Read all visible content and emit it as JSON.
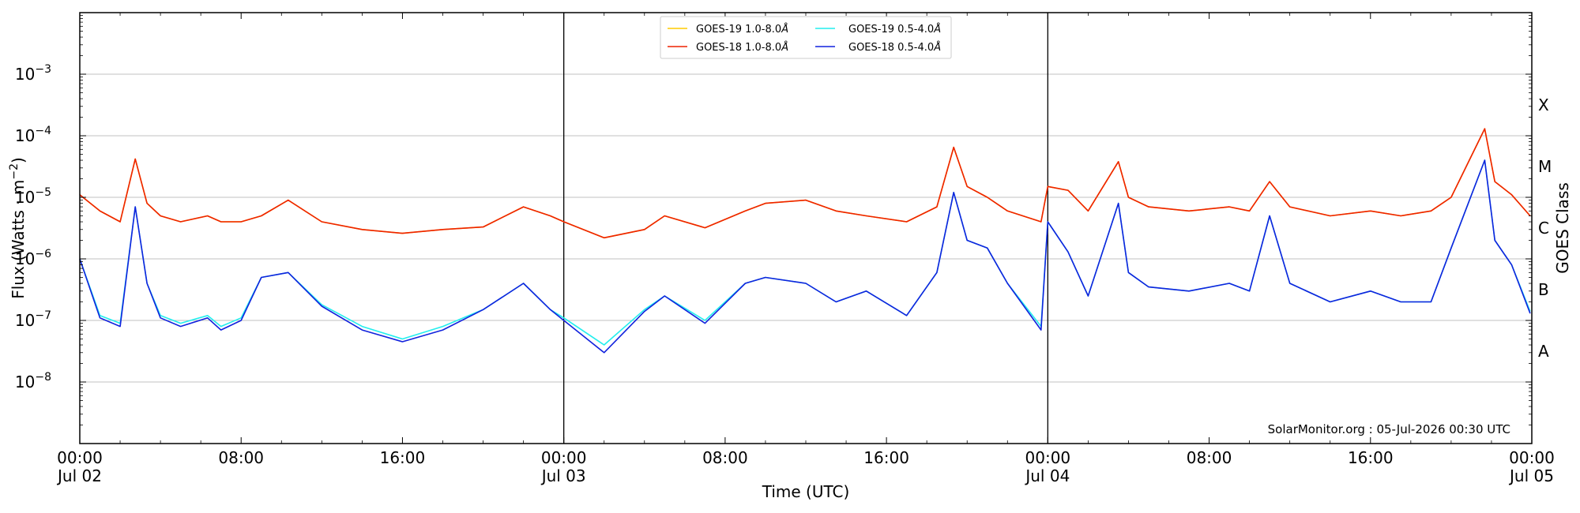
{
  "chart_data": {
    "type": "line",
    "yscale": "log",
    "ylim": [
      1e-09,
      0.01
    ],
    "xlim": [
      "2026-07-02T00:00",
      "2026-07-05T00:00"
    ],
    "xlabel": "Time (UTC)",
    "ylabel": "Flux (Watts · m^-2)",
    "ylabel_parts": {
      "prefix": "Flux (Watts · m",
      "sup": "−2",
      "suffix": ")"
    },
    "right_label": "GOES Class",
    "grid": "horizontal",
    "legend_placement": "top-center",
    "credit": "SolarMonitor.org : 05-Jul-2026 00:30 UTC",
    "y_ticks": [
      {
        "value": 1e-08,
        "base": "10",
        "exp": "−8"
      },
      {
        "value": 1e-07,
        "base": "10",
        "exp": "−7"
      },
      {
        "value": 1e-06,
        "base": "10",
        "exp": "−6"
      },
      {
        "value": 1e-05,
        "base": "10",
        "exp": "−5"
      },
      {
        "value": 0.0001,
        "base": "10",
        "exp": "−4"
      },
      {
        "value": 0.001,
        "base": "10",
        "exp": "−3"
      }
    ],
    "x_ticks": [
      {
        "value": "2026-07-02T00:00",
        "line1": "00:00",
        "line2": "Jul 02"
      },
      {
        "value": "2026-07-02T08:00",
        "line1": "08:00",
        "line2": ""
      },
      {
        "value": "2026-07-02T16:00",
        "line1": "16:00",
        "line2": ""
      },
      {
        "value": "2026-07-03T00:00",
        "line1": "00:00",
        "line2": "Jul 03"
      },
      {
        "value": "2026-07-03T08:00",
        "line1": "08:00",
        "line2": ""
      },
      {
        "value": "2026-07-03T16:00",
        "line1": "16:00",
        "line2": ""
      },
      {
        "value": "2026-07-04T00:00",
        "line1": "00:00",
        "line2": "Jul 04"
      },
      {
        "value": "2026-07-04T08:00",
        "line1": "08:00",
        "line2": ""
      },
      {
        "value": "2026-07-04T16:00",
        "line1": "16:00",
        "line2": ""
      },
      {
        "value": "2026-07-05T00:00",
        "line1": "00:00",
        "line2": "Jul 05"
      }
    ],
    "day_separators": [
      "2026-07-03T00:00",
      "2026-07-04T00:00"
    ],
    "goes_classes": [
      {
        "label": "A",
        "low": 1e-08,
        "high": 1e-07
      },
      {
        "label": "B",
        "low": 1e-07,
        "high": 1e-06
      },
      {
        "label": "C",
        "low": 1e-06,
        "high": 1e-05
      },
      {
        "label": "M",
        "low": 1e-05,
        "high": 0.0001
      },
      {
        "label": "X",
        "low": 0.0001,
        "high": 0.001
      }
    ],
    "series": [
      {
        "name": "GOES-19 1.0-8.0Å",
        "legend_label": "GOES-19 1.0-8.0",
        "color": "#ffcc00",
        "x": [
          "2026-07-02T00:00",
          "2026-07-02T01:00",
          "2026-07-02T02:00",
          "2026-07-02T02:45",
          "2026-07-02T03:20",
          "2026-07-02T04:00",
          "2026-07-02T05:00",
          "2026-07-02T06:20",
          "2026-07-02T07:00",
          "2026-07-02T08:00",
          "2026-07-02T09:00",
          "2026-07-02T10:20",
          "2026-07-02T12:00",
          "2026-07-02T14:00",
          "2026-07-02T16:00",
          "2026-07-02T18:00",
          "2026-07-02T20:00",
          "2026-07-02T22:00",
          "2026-07-02T23:20",
          "2026-07-03T00:00",
          "2026-07-03T02:00",
          "2026-07-03T04:00",
          "2026-07-03T05:00",
          "2026-07-03T07:00",
          "2026-07-03T09:00",
          "2026-07-03T10:00",
          "2026-07-03T12:00",
          "2026-07-03T13:30",
          "2026-07-03T15:00",
          "2026-07-03T17:00",
          "2026-07-03T18:30",
          "2026-07-03T19:20",
          "2026-07-03T20:00",
          "2026-07-03T21:00",
          "2026-07-03T22:00",
          "2026-07-03T23:40",
          "2026-07-04T00:00",
          "2026-07-04T01:00",
          "2026-07-04T02:00",
          "2026-07-04T03:30",
          "2026-07-04T04:00",
          "2026-07-04T05:00",
          "2026-07-04T07:00",
          "2026-07-04T09:00",
          "2026-07-04T10:00",
          "2026-07-04T11:00",
          "2026-07-04T12:00",
          "2026-07-04T14:00",
          "2026-07-04T16:00",
          "2026-07-04T17:30",
          "2026-07-04T19:00",
          "2026-07-04T20:00",
          "2026-07-04T21:40",
          "2026-07-04T22:10",
          "2026-07-04T23:00",
          "2026-07-04T23:55"
        ],
        "y": [
          1.1e-05,
          6e-06,
          4e-06,
          4.2e-05,
          8e-06,
          5e-06,
          4e-06,
          5e-06,
          4e-06,
          4e-06,
          5e-06,
          9e-06,
          4e-06,
          3e-06,
          2.6e-06,
          3e-06,
          3.3e-06,
          7e-06,
          5e-06,
          4e-06,
          2.2e-06,
          3e-06,
          5e-06,
          3.2e-06,
          6e-06,
          8e-06,
          9e-06,
          6e-06,
          5e-06,
          4e-06,
          7e-06,
          6.5e-05,
          1.5e-05,
          1e-05,
          6e-06,
          4e-06,
          1.5e-05,
          1.3e-05,
          6e-06,
          3.8e-05,
          1e-05,
          7e-06,
          6e-06,
          7e-06,
          6e-06,
          1.8e-05,
          7e-06,
          5e-06,
          6e-06,
          5e-06,
          6e-06,
          1e-05,
          0.00013,
          1.8e-05,
          1.1e-05,
          5e-06
        ]
      },
      {
        "name": "GOES-18 1.0-8.0Å",
        "legend_label": "GOES-18 1.0-8.0",
        "color": "#ee2200",
        "x": [
          "2026-07-02T00:00",
          "2026-07-02T01:00",
          "2026-07-02T02:00",
          "2026-07-02T02:45",
          "2026-07-02T03:20",
          "2026-07-02T04:00",
          "2026-07-02T05:00",
          "2026-07-02T06:20",
          "2026-07-02T07:00",
          "2026-07-02T08:00",
          "2026-07-02T09:00",
          "2026-07-02T10:20",
          "2026-07-02T12:00",
          "2026-07-02T14:00",
          "2026-07-02T16:00",
          "2026-07-02T18:00",
          "2026-07-02T20:00",
          "2026-07-02T22:00",
          "2026-07-02T23:20",
          "2026-07-03T00:00",
          "2026-07-03T02:00",
          "2026-07-03T04:00",
          "2026-07-03T05:00",
          "2026-07-03T07:00",
          "2026-07-03T09:00",
          "2026-07-03T10:00",
          "2026-07-03T12:00",
          "2026-07-03T13:30",
          "2026-07-03T15:00",
          "2026-07-03T17:00",
          "2026-07-03T18:30",
          "2026-07-03T19:20",
          "2026-07-03T20:00",
          "2026-07-03T21:00",
          "2026-07-03T22:00",
          "2026-07-03T23:40",
          "2026-07-04T00:00",
          "2026-07-04T01:00",
          "2026-07-04T02:00",
          "2026-07-04T03:30",
          "2026-07-04T04:00",
          "2026-07-04T05:00",
          "2026-07-04T07:00",
          "2026-07-04T09:00",
          "2026-07-04T10:00",
          "2026-07-04T11:00",
          "2026-07-04T12:00",
          "2026-07-04T14:00",
          "2026-07-04T16:00",
          "2026-07-04T17:30",
          "2026-07-04T19:00",
          "2026-07-04T20:00",
          "2026-07-04T21:40",
          "2026-07-04T22:10",
          "2026-07-04T23:00",
          "2026-07-04T23:55"
        ],
        "y": [
          1.1e-05,
          6e-06,
          4e-06,
          4.2e-05,
          8e-06,
          5e-06,
          4e-06,
          5e-06,
          4e-06,
          4e-06,
          5e-06,
          9e-06,
          4e-06,
          3e-06,
          2.6e-06,
          3e-06,
          3.3e-06,
          7e-06,
          5e-06,
          4e-06,
          2.2e-06,
          3e-06,
          5e-06,
          3.2e-06,
          6e-06,
          8e-06,
          9e-06,
          6e-06,
          5e-06,
          4e-06,
          7e-06,
          6.5e-05,
          1.5e-05,
          1e-05,
          6e-06,
          4e-06,
          1.5e-05,
          1.3e-05,
          6e-06,
          3.8e-05,
          1e-05,
          7e-06,
          6e-06,
          7e-06,
          6e-06,
          1.8e-05,
          7e-06,
          5e-06,
          6e-06,
          5e-06,
          6e-06,
          1e-05,
          0.00013,
          1.8e-05,
          1.1e-05,
          5e-06
        ]
      },
      {
        "name": "GOES-19 0.5-4.0Å",
        "legend_label": "GOES-19 0.5-4.0",
        "color": "#22eeee",
        "x": [
          "2026-07-02T00:00",
          "2026-07-02T01:00",
          "2026-07-02T02:00",
          "2026-07-02T02:45",
          "2026-07-02T03:20",
          "2026-07-02T04:00",
          "2026-07-02T05:00",
          "2026-07-02T06:20",
          "2026-07-02T07:00",
          "2026-07-02T08:00",
          "2026-07-02T09:00",
          "2026-07-02T10:20",
          "2026-07-02T12:00",
          "2026-07-02T14:00",
          "2026-07-02T16:00",
          "2026-07-02T18:00",
          "2026-07-02T20:00",
          "2026-07-02T22:00",
          "2026-07-02T23:20",
          "2026-07-03T00:00",
          "2026-07-03T02:00",
          "2026-07-03T04:00",
          "2026-07-03T05:00",
          "2026-07-03T07:00",
          "2026-07-03T09:00",
          "2026-07-03T10:00",
          "2026-07-03T12:00",
          "2026-07-03T13:30",
          "2026-07-03T15:00",
          "2026-07-03T17:00",
          "2026-07-03T18:30",
          "2026-07-03T19:20",
          "2026-07-03T20:00",
          "2026-07-03T21:00",
          "2026-07-03T22:00",
          "2026-07-03T23:40",
          "2026-07-04T00:00",
          "2026-07-04T01:00",
          "2026-07-04T02:00",
          "2026-07-04T03:30",
          "2026-07-04T04:00",
          "2026-07-04T05:00",
          "2026-07-04T07:00",
          "2026-07-04T09:00",
          "2026-07-04T10:00",
          "2026-07-04T11:00",
          "2026-07-04T12:00",
          "2026-07-04T14:00",
          "2026-07-04T16:00",
          "2026-07-04T17:30",
          "2026-07-04T19:00",
          "2026-07-04T20:00",
          "2026-07-04T21:40",
          "2026-07-04T22:10",
          "2026-07-04T23:00",
          "2026-07-04T23:55"
        ],
        "y": [
          1e-06,
          1.2e-07,
          9e-08,
          7e-06,
          4e-07,
          1.2e-07,
          9e-08,
          1.2e-07,
          8e-08,
          1.1e-07,
          5e-07,
          6e-07,
          1.8e-07,
          8e-08,
          5e-08,
          8e-08,
          1.5e-07,
          4e-07,
          1.5e-07,
          1.1e-07,
          4e-08,
          1.5e-07,
          2.5e-07,
          1e-07,
          4e-07,
          5e-07,
          4e-07,
          2e-07,
          3e-07,
          1.2e-07,
          6e-07,
          1.2e-05,
          2e-06,
          1.5e-06,
          4e-07,
          8e-08,
          4e-06,
          1.3e-06,
          2.5e-07,
          8e-06,
          6e-07,
          3.5e-07,
          3e-07,
          4e-07,
          3e-07,
          5e-06,
          4e-07,
          2e-07,
          3e-07,
          2e-07,
          2e-07,
          1.5e-06,
          4e-05,
          2e-06,
          8e-07,
          1.4e-07
        ]
      },
      {
        "name": "GOES-18 0.5-4.0Å",
        "legend_label": "GOES-18 0.5-4.0",
        "color": "#1122dd",
        "x": [
          "2026-07-02T00:00",
          "2026-07-02T01:00",
          "2026-07-02T02:00",
          "2026-07-02T02:45",
          "2026-07-02T03:20",
          "2026-07-02T04:00",
          "2026-07-02T05:00",
          "2026-07-02T06:20",
          "2026-07-02T07:00",
          "2026-07-02T08:00",
          "2026-07-02T09:00",
          "2026-07-02T10:20",
          "2026-07-02T12:00",
          "2026-07-02T14:00",
          "2026-07-02T16:00",
          "2026-07-02T18:00",
          "2026-07-02T20:00",
          "2026-07-02T22:00",
          "2026-07-02T23:20",
          "2026-07-03T00:00",
          "2026-07-03T02:00",
          "2026-07-03T04:00",
          "2026-07-03T05:00",
          "2026-07-03T07:00",
          "2026-07-03T09:00",
          "2026-07-03T10:00",
          "2026-07-03T12:00",
          "2026-07-03T13:30",
          "2026-07-03T15:00",
          "2026-07-03T17:00",
          "2026-07-03T18:30",
          "2026-07-03T19:20",
          "2026-07-03T20:00",
          "2026-07-03T21:00",
          "2026-07-03T22:00",
          "2026-07-03T23:40",
          "2026-07-04T00:00",
          "2026-07-04T01:00",
          "2026-07-04T02:00",
          "2026-07-04T03:30",
          "2026-07-04T04:00",
          "2026-07-04T05:00",
          "2026-07-04T07:00",
          "2026-07-04T09:00",
          "2026-07-04T10:00",
          "2026-07-04T11:00",
          "2026-07-04T12:00",
          "2026-07-04T14:00",
          "2026-07-04T16:00",
          "2026-07-04T17:30",
          "2026-07-04T19:00",
          "2026-07-04T20:00",
          "2026-07-04T21:40",
          "2026-07-04T22:10",
          "2026-07-04T23:00",
          "2026-07-04T23:55"
        ],
        "y": [
          1e-06,
          1.1e-07,
          8e-08,
          7e-06,
          4e-07,
          1.1e-07,
          8e-08,
          1.1e-07,
          7e-08,
          1e-07,
          5e-07,
          6e-07,
          1.7e-07,
          7e-08,
          4.5e-08,
          7e-08,
          1.5e-07,
          4e-07,
          1.5e-07,
          1e-07,
          3e-08,
          1.4e-07,
          2.5e-07,
          9e-08,
          4e-07,
          5e-07,
          4e-07,
          2e-07,
          3e-07,
          1.2e-07,
          6e-07,
          1.2e-05,
          2e-06,
          1.5e-06,
          4e-07,
          7e-08,
          4e-06,
          1.3e-06,
          2.5e-07,
          8e-06,
          6e-07,
          3.5e-07,
          3e-07,
          4e-07,
          3e-07,
          5e-06,
          4e-07,
          2e-07,
          3e-07,
          2e-07,
          2e-07,
          1.5e-06,
          4e-05,
          2e-06,
          8e-07,
          1.3e-07
        ]
      }
    ]
  },
  "legend_suffix": "Å"
}
